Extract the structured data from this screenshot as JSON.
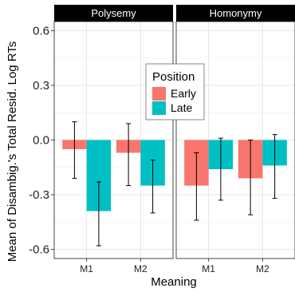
{
  "chart_data": {
    "type": "bar",
    "ylabel": "Mean of Disambig.'s Total Resid. Log RTs",
    "xlabel": "Meaning",
    "ylim": [
      -0.65,
      0.65
    ],
    "yticks": [
      -0.6,
      -0.3,
      0.0,
      0.3,
      0.6
    ],
    "ytick_labels": [
      "-0.6",
      "-0.3",
      "0.0",
      "0.3",
      "0.6"
    ],
    "categories": [
      "M1",
      "M2"
    ],
    "grid": true,
    "legend": {
      "title": "Position",
      "placement": "center",
      "entries": [
        {
          "name": "Early",
          "color": "#F8766D"
        },
        {
          "name": "Late",
          "color": "#00BFC4"
        }
      ]
    },
    "panels": [
      {
        "strip": "Polysemy",
        "series": [
          {
            "name": "Early",
            "color": "#F8766D",
            "values": [
              -0.05,
              -0.07
            ],
            "err_low": [
              -0.21,
              -0.25
            ],
            "err_high": [
              0.1,
              0.09
            ]
          },
          {
            "name": "Late",
            "color": "#00BFC4",
            "values": [
              -0.39,
              -0.25
            ],
            "err_low": [
              -0.58,
              -0.4
            ],
            "err_high": [
              -0.23,
              -0.11
            ]
          }
        ]
      },
      {
        "strip": "Homonymy",
        "series": [
          {
            "name": "Early",
            "color": "#F8766D",
            "values": [
              -0.25,
              -0.21
            ],
            "err_low": [
              -0.44,
              -0.41
            ],
            "err_high": [
              -0.07,
              0.0
            ]
          },
          {
            "name": "Late",
            "color": "#00BFC4",
            "values": [
              -0.16,
              -0.14
            ],
            "err_low": [
              -0.33,
              -0.32
            ],
            "err_high": [
              0.01,
              0.03
            ]
          }
        ]
      }
    ]
  }
}
